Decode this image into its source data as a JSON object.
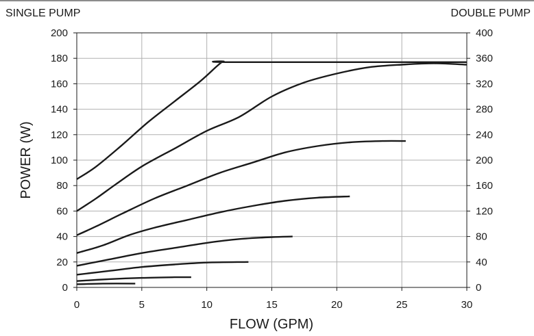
{
  "chart_data": {
    "type": "line",
    "title": "",
    "xlabel": "FLOW (GPM)",
    "ylabel": "POWER (W)",
    "left_axis_title": "SINGLE PUMP",
    "right_axis_title": "DOUBLE PUMP",
    "xlim": [
      0,
      30
    ],
    "ylim": [
      0,
      200
    ],
    "y2lim": [
      0,
      400
    ],
    "x_ticks": [
      "0",
      "5",
      "10",
      "15",
      "20",
      "25",
      "30"
    ],
    "y_ticks": [
      "0",
      "20",
      "40",
      "60",
      "80",
      "100",
      "120",
      "140",
      "160",
      "180",
      "200"
    ],
    "y2_ticks": [
      "0",
      "40",
      "80",
      "120",
      "160",
      "200",
      "240",
      "280",
      "320",
      "360",
      "400"
    ],
    "grid": true,
    "legend": "none",
    "line_color": "#1a1a1a",
    "grid_color": "#b0b0b0",
    "series": [
      {
        "points": [
          [
            0,
            85
          ],
          [
            1.5,
            95
          ],
          [
            3.5,
            112
          ],
          [
            5.5,
            130
          ],
          [
            7.5,
            146
          ],
          [
            9.5,
            162
          ],
          [
            10.8,
            174
          ],
          [
            11.3,
            177.5
          ],
          [
            12,
            177
          ],
          [
            30,
            177
          ]
        ]
      },
      {
        "points": [
          [
            0,
            60
          ],
          [
            1.5,
            70
          ],
          [
            3,
            81
          ],
          [
            5,
            95
          ],
          [
            7.5,
            109
          ],
          [
            10,
            123
          ],
          [
            12.5,
            134
          ],
          [
            15,
            150
          ],
          [
            17.5,
            161
          ],
          [
            20,
            168
          ],
          [
            22.5,
            173
          ],
          [
            25,
            175
          ],
          [
            27.5,
            176
          ],
          [
            30,
            175
          ]
        ]
      },
      {
        "points": [
          [
            0,
            41
          ],
          [
            1.5,
            48
          ],
          [
            3.5,
            58
          ],
          [
            6,
            70
          ],
          [
            8.5,
            80
          ],
          [
            11,
            90
          ],
          [
            13.5,
            98
          ],
          [
            16,
            106
          ],
          [
            18.5,
            111
          ],
          [
            21,
            114
          ],
          [
            23.5,
            115
          ],
          [
            25.3,
            115
          ]
        ]
      },
      {
        "points": [
          [
            0,
            27
          ],
          [
            2,
            33
          ],
          [
            4,
            41
          ],
          [
            6,
            47
          ],
          [
            8.5,
            53
          ],
          [
            11,
            59
          ],
          [
            13.5,
            64
          ],
          [
            16,
            68
          ],
          [
            18.5,
            70.5
          ],
          [
            21,
            71.5
          ]
        ]
      },
      {
        "points": [
          [
            0,
            17
          ],
          [
            2.5,
            22
          ],
          [
            5,
            27
          ],
          [
            7.5,
            31
          ],
          [
            10,
            35
          ],
          [
            12.5,
            38
          ],
          [
            15,
            39.5
          ],
          [
            16.6,
            40
          ]
        ]
      },
      {
        "points": [
          [
            0,
            10
          ],
          [
            2.5,
            13
          ],
          [
            5,
            16
          ],
          [
            7.5,
            18
          ],
          [
            10,
            19.5
          ],
          [
            13.2,
            20
          ]
        ]
      },
      {
        "points": [
          [
            0,
            5
          ],
          [
            2.5,
            6.5
          ],
          [
            5,
            7.5
          ],
          [
            7.5,
            8
          ],
          [
            8.8,
            8
          ]
        ]
      },
      {
        "points": [
          [
            0,
            2.5
          ],
          [
            2,
            3
          ],
          [
            4.5,
            3
          ]
        ]
      }
    ]
  }
}
